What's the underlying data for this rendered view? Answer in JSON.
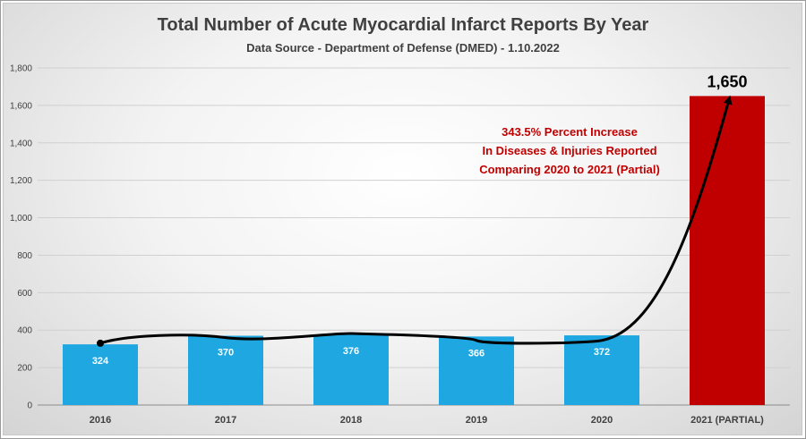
{
  "chart_data": {
    "type": "bar",
    "title": "Total Number of Acute Myocardial Infarct Reports By Year",
    "subtitle": "Data Source - Department of Defense (DMED) - 1.10.2022",
    "categories": [
      "2016",
      "2017",
      "2018",
      "2019",
      "2020",
      "2021 (PARTIAL)"
    ],
    "values": [
      324,
      370,
      376,
      366,
      372,
      1650
    ],
    "data_labels": [
      "324",
      "370",
      "376",
      "366",
      "372",
      "1,650"
    ],
    "bar_colors": [
      "#1ea7e1",
      "#1ea7e1",
      "#1ea7e1",
      "#1ea7e1",
      "#1ea7e1",
      "#c00000"
    ],
    "ylim": [
      0,
      1800
    ],
    "yticks": [
      0,
      200,
      400,
      600,
      800,
      1000,
      1200,
      1400,
      1600,
      1800
    ],
    "ytick_labels": [
      "0",
      "200",
      "400",
      "600",
      "800",
      "1,000",
      "1,200",
      "1,400",
      "1,600",
      "1,800"
    ],
    "grid": true,
    "xlabel": "",
    "ylabel": "",
    "annotation": {
      "lines": [
        "343.5% Percent Increase",
        "In Diseases & Injuries Reported",
        "Comparing 2020 to 2021 (Partial)"
      ],
      "color": "#c00000"
    }
  }
}
